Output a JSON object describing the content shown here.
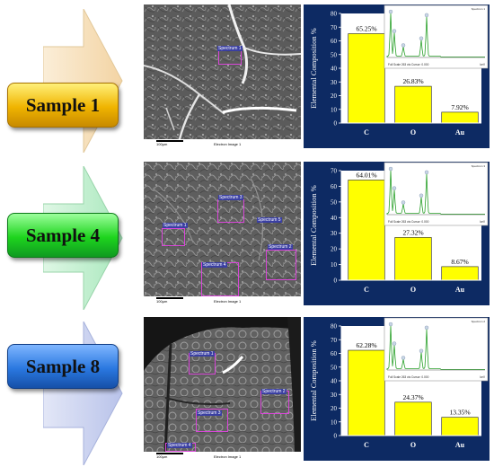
{
  "panels": [
    {
      "sample_label": "Sample 1",
      "badge_colors": [
        "#fff07a",
        "#f0b400",
        "#c78a00"
      ],
      "arrow_colors": [
        "#fbeed8",
        "#f3d4a4"
      ],
      "sem": {
        "scale_label": "100µm",
        "caption": "Electron Image 1",
        "spectra": [
          "Spectrum 1"
        ]
      },
      "inset": {
        "label": "Spectrum 1",
        "footer": "Full Scale 263 cts Cursor: 0.000",
        "unit": "keV"
      },
      "chart_data": {
        "type": "bar",
        "ylabel": "Elemental Composition %",
        "categories": [
          "C",
          "O",
          "Au"
        ],
        "values": [
          65.25,
          26.83,
          7.92
        ],
        "data_labels": [
          "65.25%",
          "26.83%",
          "7.92%"
        ],
        "ylim": [
          0,
          80
        ],
        "yticks": [
          "0",
          "10",
          "20",
          "30",
          "40",
          "50",
          "60",
          "70",
          "80"
        ]
      }
    },
    {
      "sample_label": "Sample 4",
      "badge_colors": [
        "#9cff9c",
        "#1ed41e",
        "#0f9a20"
      ],
      "arrow_colors": [
        "#dff7e5",
        "#a9e8bd"
      ],
      "sem": {
        "scale_label": "100µm",
        "caption": "Electron Image 1",
        "spectra": [
          "Spectrum 1",
          "Spectrum 2",
          "Spectrum 3",
          "Spectrum 4",
          "Spectrum 5"
        ]
      },
      "inset": {
        "label": "Spectrum 3",
        "footer": "Full Scale 263 cts Cursor: 0.000",
        "unit": "keV"
      },
      "chart_data": {
        "type": "bar",
        "ylabel": "Elemental Composition %",
        "categories": [
          "C",
          "O",
          "Au"
        ],
        "values": [
          64.01,
          27.32,
          8.67
        ],
        "data_labels": [
          "64.01%",
          "27.32%",
          "8.67%"
        ],
        "ylim": [
          0,
          70
        ],
        "yticks": [
          "0",
          "10",
          "20",
          "30",
          "40",
          "50",
          "60",
          "70"
        ]
      }
    },
    {
      "sample_label": "Sample 8",
      "badge_colors": [
        "#7fb6ff",
        "#2a78e0",
        "#1650a8"
      ],
      "arrow_colors": [
        "#e3e7f7",
        "#b9c3ea"
      ],
      "sem": {
        "scale_label": "100µm",
        "caption": "Electron Image 1",
        "spectra": [
          "Spectrum 1",
          "Spectrum 2",
          "Spectrum 3",
          "Spectrum 4"
        ]
      },
      "inset": {
        "label": "Spectrum 2",
        "footer": "Full Scale 263 cts Cursor: 0.000",
        "unit": "keV"
      },
      "chart_data": {
        "type": "bar",
        "ylabel": "Elemental Composition %",
        "categories": [
          "C",
          "O",
          "Au"
        ],
        "values": [
          62.28,
          24.37,
          13.35
        ],
        "data_labels": [
          "62.28%",
          "24.37%",
          "13.35%"
        ],
        "ylim": [
          0,
          80
        ],
        "yticks": [
          "0",
          "10",
          "20",
          "30",
          "40",
          "50",
          "60",
          "70",
          "80"
        ]
      }
    }
  ],
  "colors": {
    "chart_bg": "#0d2a63",
    "bar_fill": "#ffff00",
    "bar_stroke": "#222222",
    "plot_bg": "#ffffff",
    "inset_trace": "#2aa12a"
  }
}
